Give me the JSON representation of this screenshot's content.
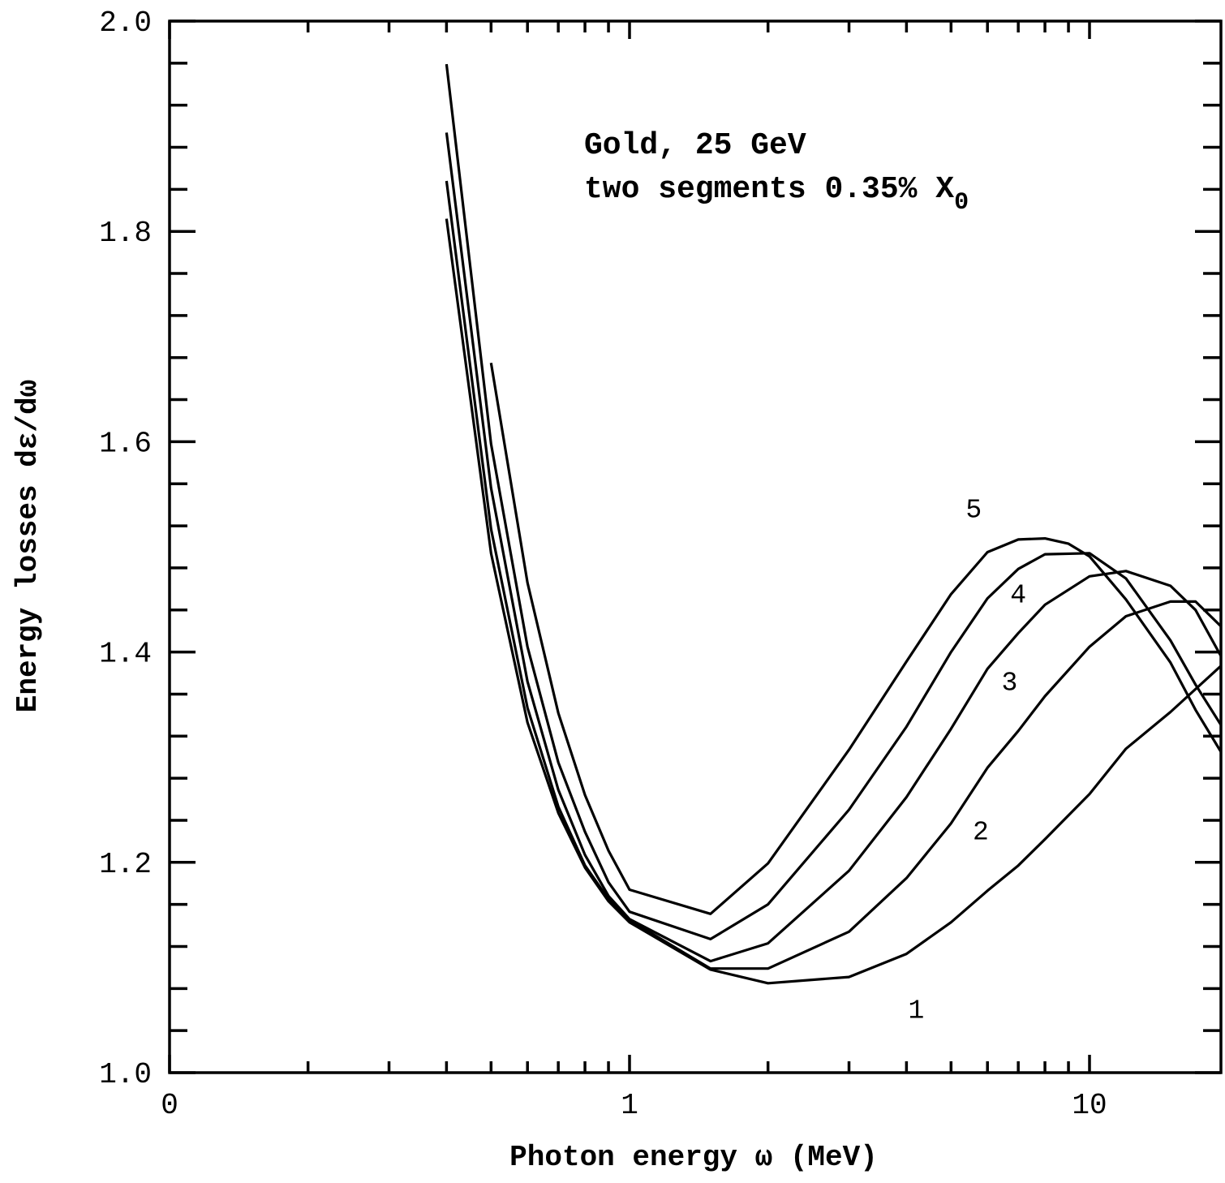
{
  "chart_data": {
    "type": "line",
    "title": "",
    "xlabel": "Photon energy ω (MeV)",
    "ylabel": "Energy losses dε/dω",
    "x_scale": "log",
    "xlim": [
      0.1,
      20
    ],
    "ylim": [
      1.0,
      2.0
    ],
    "x_tick_labels": [
      {
        "value": 0.1,
        "label": "0"
      },
      {
        "value": 1,
        "label": "1"
      },
      {
        "value": 10,
        "label": "10"
      }
    ],
    "y_ticks": [
      1.0,
      1.2,
      1.4,
      1.6,
      1.8,
      2.0
    ],
    "y_tick_labels": [
      "1.0",
      "1.2",
      "1.4",
      "1.6",
      "1.8",
      "2.0"
    ],
    "grid": false,
    "annotation": {
      "line1": "Gold, 25 GeV",
      "line2": "two segments 0.35% X",
      "line2_subscript": "0"
    },
    "series": [
      {
        "name": "1",
        "x": [
          0.4,
          0.5,
          0.6,
          0.7,
          0.8,
          0.9,
          1.0,
          1.5,
          2.0,
          3.0,
          4.0,
          5.0,
          6.0,
          7.0,
          8.0,
          10.0,
          12.0,
          15.0,
          20.0
        ],
        "y": [
          1.812,
          1.494,
          1.333,
          1.247,
          1.195,
          1.163,
          1.143,
          1.098,
          1.085,
          1.091,
          1.113,
          1.143,
          1.173,
          1.197,
          1.222,
          1.265,
          1.308,
          1.343,
          1.393
        ]
      },
      {
        "name": "2",
        "x": [
          0.4,
          0.5,
          0.6,
          0.7,
          0.8,
          0.9,
          1.0,
          1.5,
          2.0,
          3.0,
          4.0,
          5.0,
          6.0,
          7.0,
          8.0,
          10.0,
          12.0,
          15.0,
          17.0,
          20.0
        ],
        "y": [
          1.848,
          1.517,
          1.347,
          1.253,
          1.197,
          1.165,
          1.145,
          1.099,
          1.099,
          1.134,
          1.185,
          1.237,
          1.29,
          1.325,
          1.358,
          1.405,
          1.434,
          1.448,
          1.448,
          1.418
        ]
      },
      {
        "name": "3",
        "x": [
          0.4,
          0.5,
          0.6,
          0.7,
          0.8,
          0.9,
          1.0,
          1.5,
          2.0,
          3.0,
          4.0,
          5.0,
          6.0,
          7.0,
          8.0,
          10.0,
          12.0,
          15.0,
          17.0,
          20.0
        ],
        "y": [
          1.894,
          1.556,
          1.372,
          1.269,
          1.207,
          1.168,
          1.146,
          1.106,
          1.123,
          1.192,
          1.262,
          1.327,
          1.384,
          1.418,
          1.445,
          1.472,
          1.477,
          1.463,
          1.44,
          1.384
        ]
      },
      {
        "name": "4",
        "x": [
          0.4,
          0.5,
          0.6,
          0.7,
          0.8,
          0.9,
          1.0,
          1.5,
          2.0,
          3.0,
          4.0,
          5.0,
          6.0,
          7.0,
          8.0,
          10.0,
          12.0,
          15.0,
          17.0,
          20.0
        ],
        "y": [
          1.959,
          1.598,
          1.405,
          1.295,
          1.229,
          1.181,
          1.153,
          1.127,
          1.16,
          1.25,
          1.329,
          1.4,
          1.451,
          1.479,
          1.493,
          1.494,
          1.47,
          1.411,
          1.369,
          1.32
        ]
      },
      {
        "name": "5",
        "x": [
          0.5,
          0.6,
          0.7,
          0.8,
          0.9,
          1.0,
          1.5,
          2.0,
          3.0,
          4.0,
          5.0,
          6.0,
          7.0,
          8.0,
          9.0,
          10.0,
          12.0,
          15.0,
          17.0,
          20.0
        ],
        "y": [
          1.675,
          1.466,
          1.342,
          1.264,
          1.211,
          1.174,
          1.151,
          1.199,
          1.307,
          1.391,
          1.455,
          1.495,
          1.507,
          1.508,
          1.503,
          1.491,
          1.45,
          1.39,
          1.345,
          1.294
        ]
      }
    ],
    "curve_labels": [
      {
        "text": "1",
        "x": 4.2,
        "y": 1.052
      },
      {
        "text": "2",
        "x": 5.8,
        "y": 1.222
      },
      {
        "text": "3",
        "x": 6.7,
        "y": 1.364
      },
      {
        "text": "4",
        "x": 7.0,
        "y": 1.447
      },
      {
        "text": "5",
        "x": 5.6,
        "y": 1.528
      }
    ]
  }
}
